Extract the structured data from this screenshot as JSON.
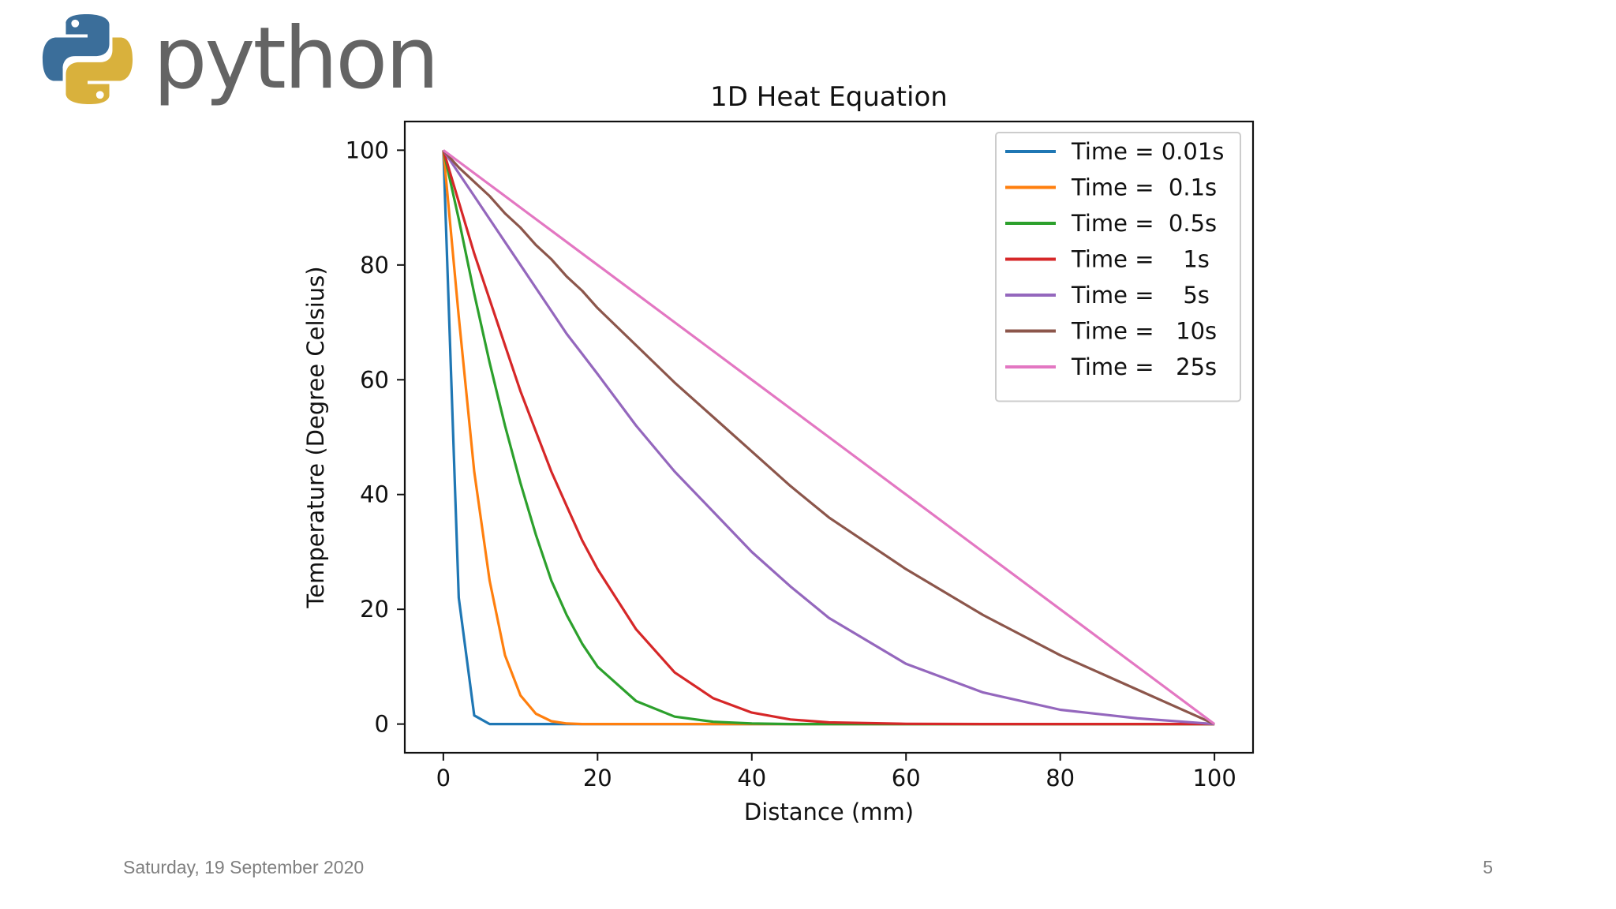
{
  "slide": {
    "logo_text": "python",
    "date": "Saturday, 19 September 2020",
    "page_number": "5"
  },
  "chart_data": {
    "type": "line",
    "title": "1D Heat Equation",
    "xlabel": "Distance (mm)",
    "ylabel": "Temperature (Degree Celsius)",
    "xlim": [
      -5,
      105
    ],
    "ylim": [
      -5,
      105
    ],
    "x_ticks": [
      0,
      20,
      40,
      60,
      80,
      100
    ],
    "y_ticks": [
      0,
      20,
      40,
      60,
      80,
      100
    ],
    "legend_position": "top-right",
    "x": [
      0,
      2,
      4,
      6,
      8,
      10,
      12,
      14,
      16,
      18,
      20,
      25,
      30,
      35,
      40,
      45,
      50,
      60,
      70,
      80,
      90,
      100
    ],
    "series": [
      {
        "name": "Time = 0.01s",
        "color": "#1f77b4",
        "values": [
          100,
          22,
          1.5,
          0,
          0,
          0,
          0,
          0,
          0,
          0,
          0,
          0,
          0,
          0,
          0,
          0,
          0,
          0,
          0,
          0,
          0,
          0
        ]
      },
      {
        "name": "Time =  0.1s",
        "color": "#ff7f0e",
        "values": [
          100,
          71,
          44,
          25,
          12,
          5,
          1.8,
          0.5,
          0.1,
          0,
          0,
          0,
          0,
          0,
          0,
          0,
          0,
          0,
          0,
          0,
          0,
          0
        ]
      },
      {
        "name": "Time =  0.5s",
        "color": "#2ca02c",
        "values": [
          100,
          88,
          75,
          63,
          52,
          42,
          33,
          25,
          19,
          14,
          10,
          4,
          1.3,
          0.4,
          0.1,
          0,
          0,
          0,
          0,
          0,
          0,
          0
        ]
      },
      {
        "name": "Time =    1s",
        "color": "#d62728",
        "values": [
          100,
          91,
          82,
          74,
          66,
          58,
          51,
          44,
          38,
          32,
          27,
          16.5,
          9,
          4.5,
          2,
          0.8,
          0.3,
          0.05,
          0,
          0,
          0,
          0
        ]
      },
      {
        "name": "Time =    5s",
        "color": "#9467bd",
        "values": [
          100,
          96,
          92,
          88,
          84,
          80,
          76,
          72,
          68,
          64.5,
          61,
          52,
          44,
          37,
          30,
          24,
          18.5,
          10.5,
          5.5,
          2.5,
          1,
          0
        ]
      },
      {
        "name": "Time =   10s",
        "color": "#8c564b",
        "values": [
          100,
          97,
          94.5,
          92,
          89,
          86.5,
          83.5,
          81,
          78,
          75.5,
          72.5,
          66,
          59.5,
          53.5,
          47.5,
          41.5,
          36,
          27,
          19,
          12,
          6,
          0
        ]
      },
      {
        "name": "Time =   25s",
        "color": "#e377c2",
        "values": [
          100,
          98,
          96,
          94,
          92,
          90,
          88,
          86,
          84,
          82,
          80,
          75,
          70,
          65,
          60,
          55,
          50,
          40,
          30,
          20,
          10,
          0
        ]
      }
    ]
  }
}
